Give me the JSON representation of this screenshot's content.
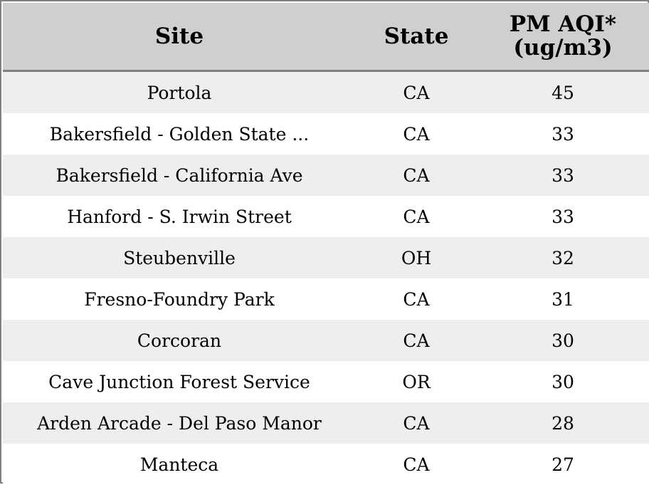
{
  "table": {
    "columns": [
      "Site",
      "State",
      "PM AQI*\n(ug/m3)"
    ],
    "rows": [
      {
        "site": "Portola",
        "state": "CA",
        "pm": "45"
      },
      {
        "site": "Bakersfield - Golden State ...",
        "state": "CA",
        "pm": "33"
      },
      {
        "site": "Bakersfield - California Ave",
        "state": "CA",
        "pm": "33"
      },
      {
        "site": "Hanford - S. Irwin Street",
        "state": "CA",
        "pm": "33"
      },
      {
        "site": "Steubenville",
        "state": "OH",
        "pm": "32"
      },
      {
        "site": "Fresno-Foundry Park",
        "state": "CA",
        "pm": "31"
      },
      {
        "site": "Corcoran",
        "state": "CA",
        "pm": "30"
      },
      {
        "site": "Cave Junction Forest Service",
        "state": "OR",
        "pm": "30"
      },
      {
        "site": "Arden Arcade - Del Paso Manor",
        "state": "CA",
        "pm": "28"
      },
      {
        "site": "Manteca",
        "state": "CA",
        "pm": "27"
      }
    ]
  },
  "colors": {
    "header_bg": "#cfcfcf",
    "border": "#808080",
    "row_alt": "#eeeeee",
    "row_plain": "#ffffff"
  }
}
